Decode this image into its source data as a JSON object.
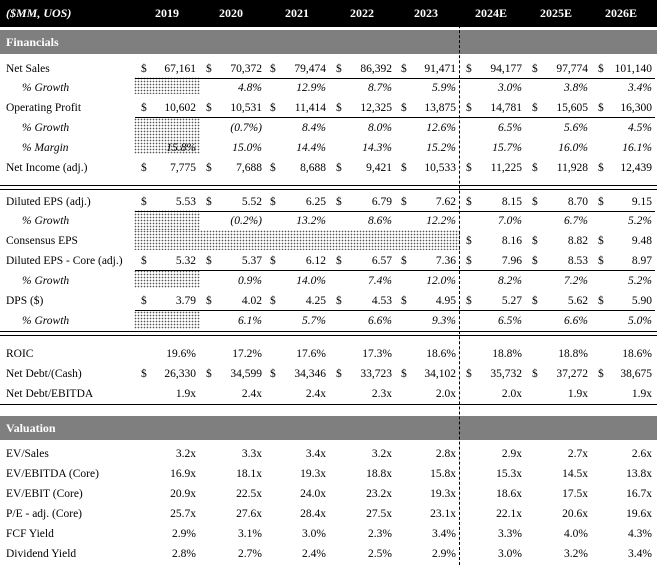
{
  "header": {
    "corner": "($MM, UOS)",
    "years": [
      "2019",
      "2020",
      "2021",
      "2022",
      "2023",
      "2024E",
      "2025E",
      "2026E"
    ]
  },
  "sections": {
    "financials": "Financials",
    "valuation": "Valuation"
  },
  "rows": {
    "net_sales": {
      "label": "Net Sales",
      "values": [
        "67,161",
        "70,372",
        "79,474",
        "86,392",
        "91,471",
        "94,177",
        "97,774",
        "101,140"
      ]
    },
    "net_sales_growth": {
      "label": "% Growth",
      "values": [
        "",
        "4.8%",
        "12.9%",
        "8.7%",
        "5.9%",
        "3.0%",
        "3.8%",
        "3.4%"
      ]
    },
    "op_profit": {
      "label": "Operating Profit",
      "values": [
        "10,602",
        "10,531",
        "11,414",
        "12,325",
        "13,875",
        "14,781",
        "15,605",
        "16,300"
      ]
    },
    "op_growth": {
      "label": "% Growth",
      "values": [
        "",
        "(0.7%)",
        "8.4%",
        "8.0%",
        "12.6%",
        "6.5%",
        "5.6%",
        "4.5%"
      ]
    },
    "op_margin": {
      "label": "% Margin",
      "values": [
        "15.8%",
        "15.0%",
        "14.4%",
        "14.3%",
        "15.2%",
        "15.7%",
        "16.0%",
        "16.1%"
      ]
    },
    "net_income": {
      "label": "Net Income (adj.)",
      "values": [
        "7,775",
        "7,688",
        "8,688",
        "9,421",
        "10,533",
        "11,225",
        "11,928",
        "12,439"
      ]
    },
    "eps": {
      "label": "Diluted EPS (adj.)",
      "values": [
        "5.53",
        "5.52",
        "6.25",
        "6.79",
        "7.62",
        "8.15",
        "8.70",
        "9.15"
      ]
    },
    "eps_growth": {
      "label": "% Growth",
      "values": [
        "",
        "(0.2%)",
        "13.2%",
        "8.6%",
        "12.2%",
        "7.0%",
        "6.7%",
        "5.2%"
      ]
    },
    "consensus_eps": {
      "label": "Consensus EPS",
      "values": [
        "",
        "",
        "",
        "",
        "",
        "8.16",
        "8.82",
        "9.48"
      ]
    },
    "eps_core": {
      "label": "Diluted EPS - Core (adj.)",
      "values": [
        "5.32",
        "5.37",
        "6.12",
        "6.57",
        "7.36",
        "7.96",
        "8.53",
        "8.97"
      ]
    },
    "eps_core_growth": {
      "label": "% Growth",
      "values": [
        "",
        "0.9%",
        "14.0%",
        "7.4%",
        "12.0%",
        "8.2%",
        "7.2%",
        "5.2%"
      ]
    },
    "dps": {
      "label": "DPS ($)",
      "values": [
        "3.79",
        "4.02",
        "4.25",
        "4.53",
        "4.95",
        "5.27",
        "5.62",
        "5.90"
      ]
    },
    "dps_growth": {
      "label": "% Growth",
      "values": [
        "",
        "6.1%",
        "5.7%",
        "6.6%",
        "9.3%",
        "6.5%",
        "6.6%",
        "5.0%"
      ]
    },
    "roic": {
      "label": "ROIC",
      "values": [
        "19.6%",
        "17.2%",
        "17.6%",
        "17.3%",
        "18.6%",
        "18.8%",
        "18.8%",
        "18.6%"
      ]
    },
    "net_debt": {
      "label": "Net Debt/(Cash)",
      "values": [
        "26,330",
        "34,599",
        "34,346",
        "33,723",
        "34,102",
        "35,732",
        "37,272",
        "38,675"
      ]
    },
    "net_debt_ebitda": {
      "label": "Net Debt/EBITDA",
      "values": [
        "1.9x",
        "2.4x",
        "2.4x",
        "2.3x",
        "2.0x",
        "2.0x",
        "1.9x",
        "1.9x"
      ]
    },
    "ev_sales": {
      "label": "EV/Sales",
      "values": [
        "3.2x",
        "3.3x",
        "3.4x",
        "3.2x",
        "2.8x",
        "2.9x",
        "2.7x",
        "2.6x"
      ]
    },
    "ev_ebitda": {
      "label": "EV/EBITDA (Core)",
      "values": [
        "16.9x",
        "18.1x",
        "19.3x",
        "18.8x",
        "15.8x",
        "15.3x",
        "14.5x",
        "13.8x"
      ]
    },
    "ev_ebit": {
      "label": "EV/EBIT (Core)",
      "values": [
        "20.9x",
        "22.5x",
        "24.0x",
        "23.2x",
        "19.3x",
        "18.6x",
        "17.5x",
        "16.7x"
      ]
    },
    "pe": {
      "label": "P/E - adj. (Core)",
      "values": [
        "25.7x",
        "27.6x",
        "28.4x",
        "27.5x",
        "23.1x",
        "22.1x",
        "20.6x",
        "19.6x"
      ]
    },
    "fcf_yield": {
      "label": "FCF Yield",
      "values": [
        "2.9%",
        "3.1%",
        "3.0%",
        "2.3%",
        "3.4%",
        "3.3%",
        "4.0%",
        "4.3%"
      ]
    },
    "div_yield": {
      "label": "Dividend Yield",
      "values": [
        "2.8%",
        "2.7%",
        "2.4%",
        "2.5%",
        "2.9%",
        "3.0%",
        "3.2%",
        "3.4%"
      ]
    }
  },
  "dollar_sign": "$"
}
